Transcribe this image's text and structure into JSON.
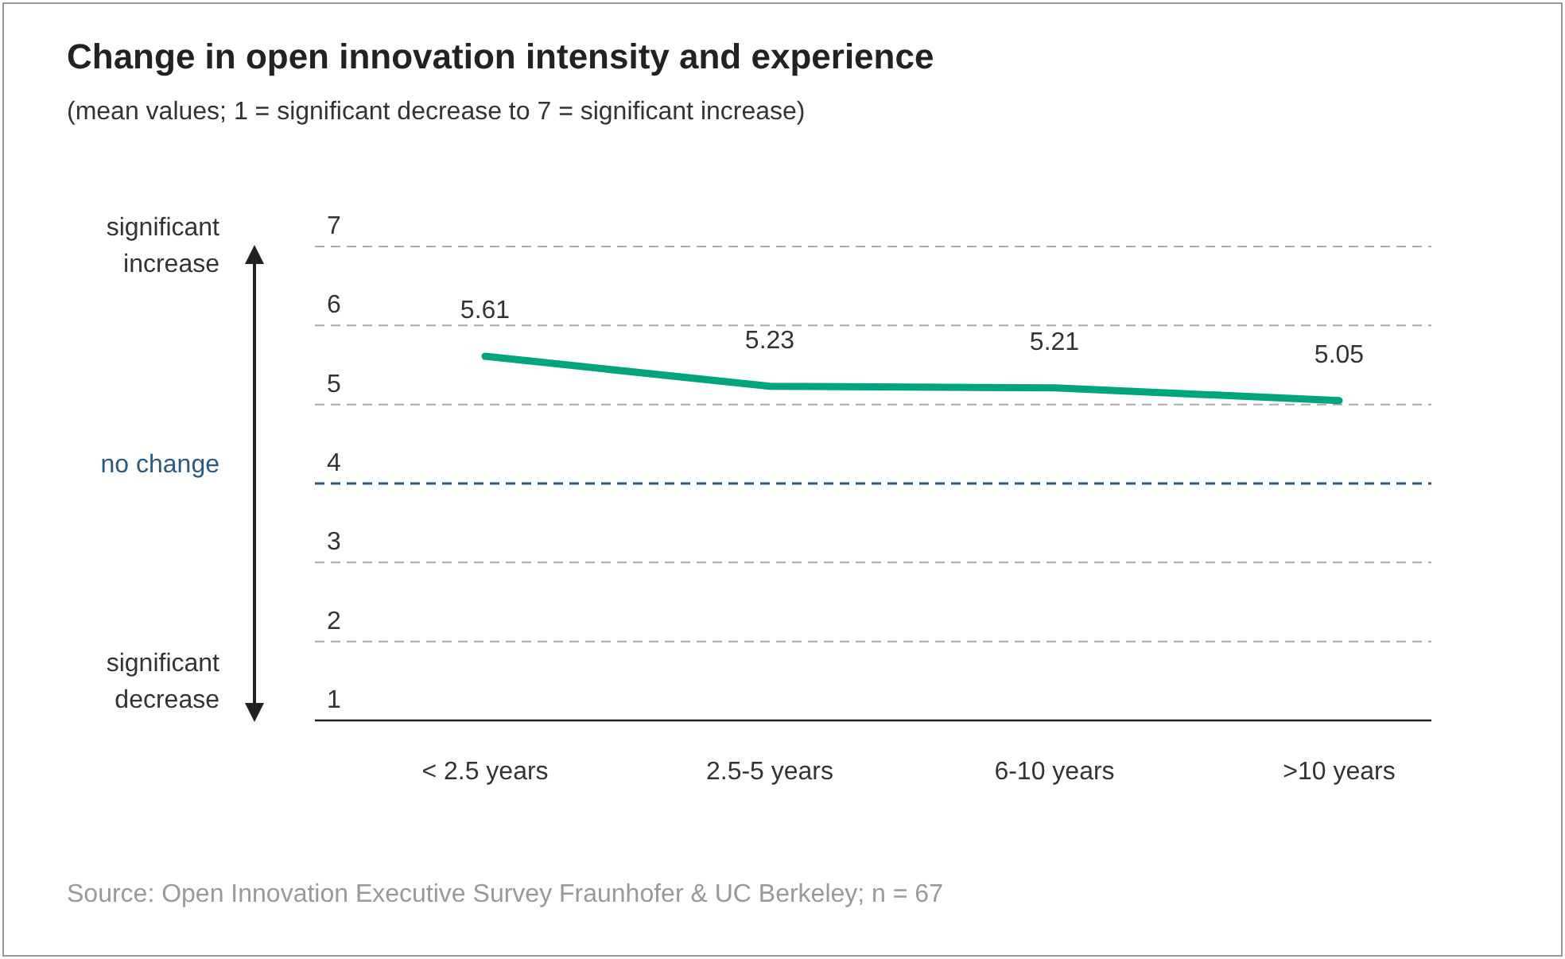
{
  "chart_data": {
    "type": "line",
    "title": "Change in open innovation intensity and experience",
    "subtitle": "(mean values; 1 = significant decrease to 7 = significant increase)",
    "categories": [
      "< 2.5 years",
      "2.5-5 years",
      "6-10 years",
      ">10 years"
    ],
    "series": [
      {
        "color": "#00a57e",
        "values": [
          5.61,
          5.23,
          5.21,
          5.05
        ]
      }
    ],
    "ylim": [
      1,
      7
    ],
    "yticks": [
      1,
      2,
      3,
      4,
      5,
      6,
      7
    ],
    "grid": "y",
    "data_labels": true,
    "marker": "none",
    "line_style": "solid",
    "ref_lines": [
      {
        "axis": "y",
        "value": 4,
        "label": "no change",
        "color": "#2a5a84",
        "line_style": "dashed"
      }
    ],
    "annotations": [
      "significant increase",
      "significant decrease",
      "Source: Open Innovation Executive Survey Fraunhofer & UC Berkeley; n = 67"
    ]
  }
}
